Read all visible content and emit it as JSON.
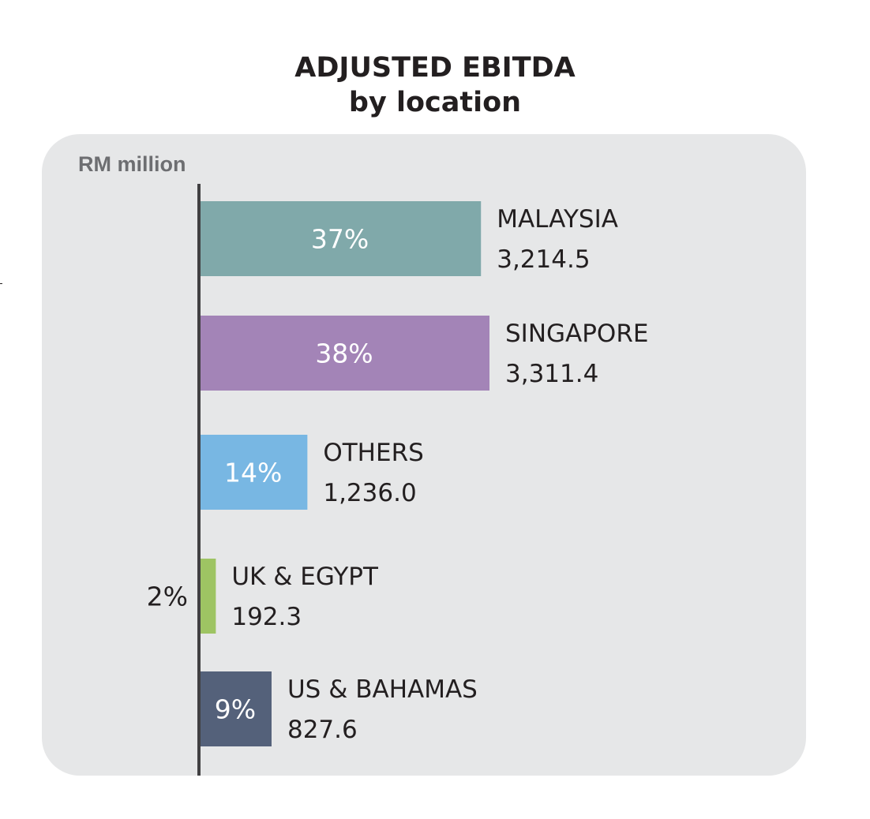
{
  "chart_data": {
    "type": "bar",
    "orientation": "horizontal",
    "title": "ADJUSTED EBITDA",
    "subtitle": "by location",
    "unit_label": "RM million",
    "categories": [
      "MALAYSIA",
      "SINGAPORE",
      "OTHERS",
      "UK & EGYPT",
      "US & BAHAMAS"
    ],
    "values": [
      3214.5,
      3311.4,
      1236.0,
      192.3,
      827.6
    ],
    "value_labels": [
      "3,214.5",
      "3,311.4",
      "1,236.0",
      "192.3",
      "827.6"
    ],
    "percent_labels": [
      "37%",
      "38%",
      "14%",
      "2%",
      "9%"
    ],
    "colors": [
      "#80a9aa",
      "#a384b7",
      "#78b7e3",
      "#9ec463",
      "#54617a"
    ],
    "xlim": [
      0,
      3311.4
    ],
    "grid": false,
    "legend": "none"
  }
}
